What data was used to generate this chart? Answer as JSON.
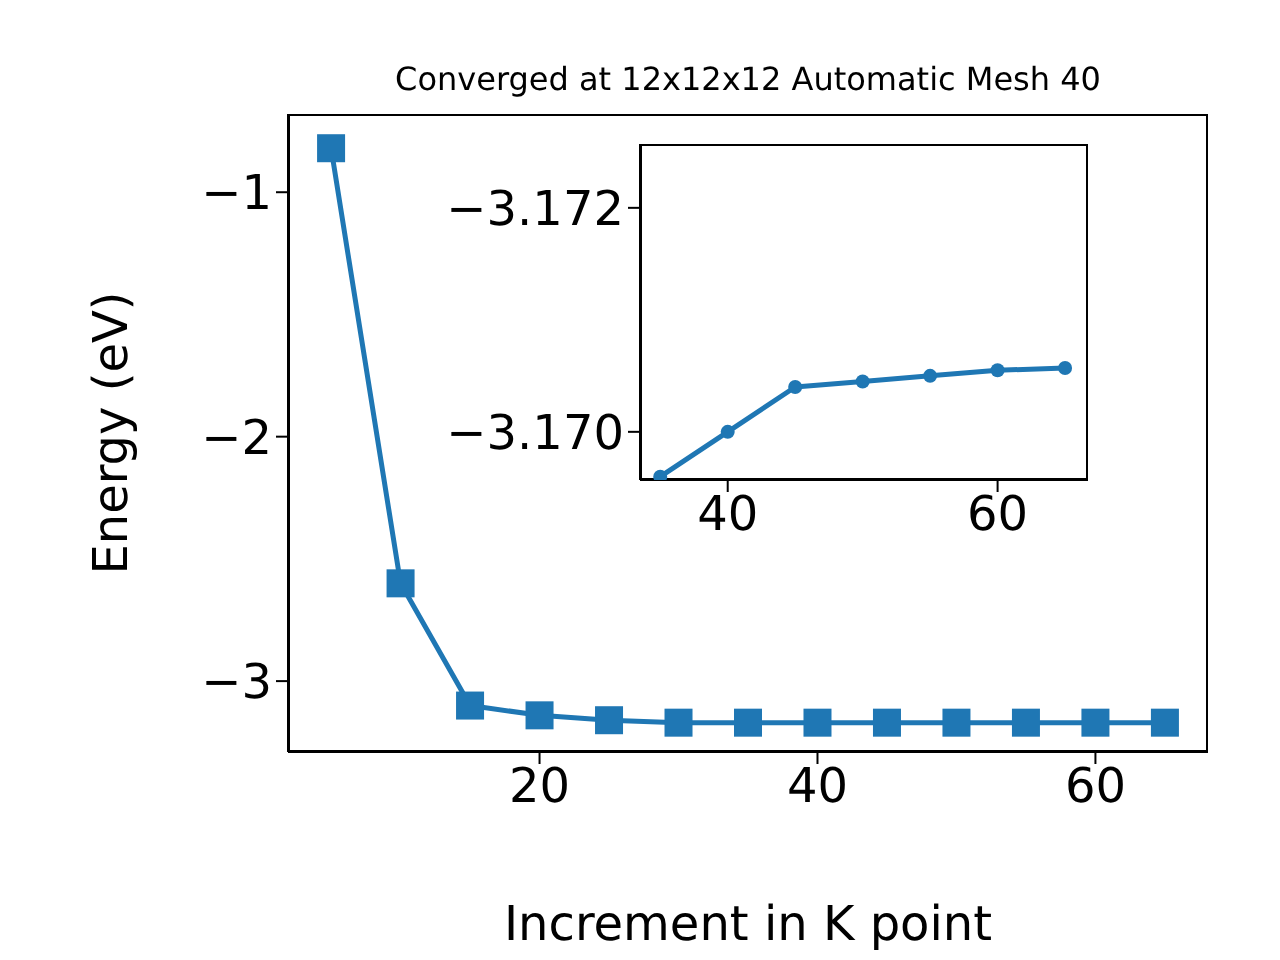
{
  "chart_data": [
    {
      "type": "line",
      "title": "Converged at 12x12x12 Automatic Mesh 40",
      "xlabel": "Increment in K point",
      "ylabel": "Energy (eV)",
      "x": [
        5,
        10,
        15,
        20,
        25,
        30,
        35,
        40,
        45,
        50,
        55,
        60,
        65
      ],
      "series": [
        {
          "color": "#1f77b4",
          "values": [
            -0.82,
            -2.6,
            -3.1,
            -3.14,
            -3.16,
            -3.17,
            -3.17,
            -3.17,
            -3.17,
            -3.17,
            -3.17,
            -3.17,
            -3.17
          ]
        }
      ],
      "xlim": [
        1.9,
        68.1
      ],
      "xticks": [
        20,
        40,
        60
      ],
      "ylim": [
        -3.29,
        -0.68
      ],
      "yticks": [
        {
          "value": -3,
          "label": "−3"
        },
        {
          "value": -2,
          "label": "−2"
        },
        {
          "value": -1,
          "label": "−1"
        }
      ],
      "grid": false,
      "marker": "square",
      "line_style": "solid"
    },
    {
      "type": "line",
      "x": [
        35,
        40,
        45,
        50,
        55,
        60,
        65
      ],
      "series": [
        {
          "color": "#1f77b4",
          "values": [
            -3.1696,
            -3.17,
            -3.1704,
            -3.17045,
            -3.1705,
            -3.17055,
            -3.17057
          ]
        }
      ],
      "xlim": [
        33.5,
        66.7
      ],
      "xticks": [
        40,
        60
      ],
      "ylim": [
        -3.16957,
        -3.17257
      ],
      "yticks": [
        {
          "value": -3.17,
          "label": "−3.170"
        },
        {
          "value": -3.172,
          "label": "−3.172"
        }
      ],
      "grid": false,
      "marker": "circle",
      "line_style": "solid"
    }
  ]
}
